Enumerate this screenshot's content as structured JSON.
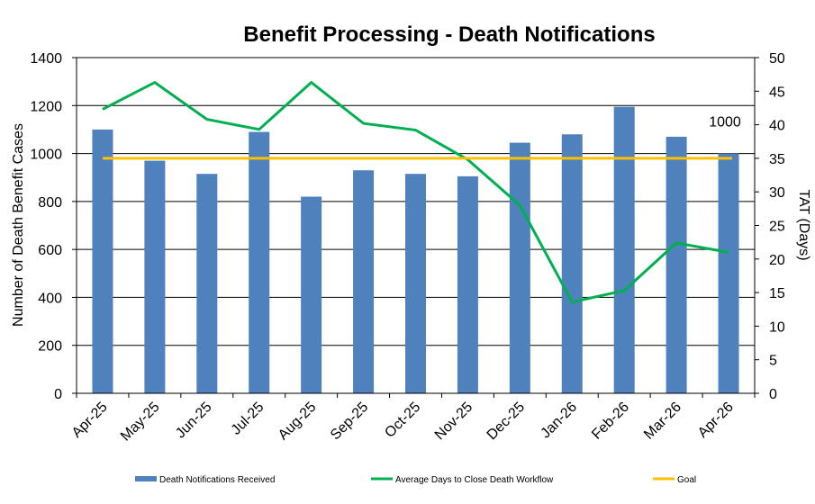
{
  "chart_data": {
    "type": "bar",
    "title": "Benefit Processing - Death Notifications",
    "categories": [
      "Apr-25",
      "May-25",
      "Jun-25",
      "Jul-25",
      "Aug-25",
      "Sep-25",
      "Oct-25",
      "Nov-25",
      "Dec-25",
      "Jan-26",
      "Feb-26",
      "Mar-26",
      "Apr-26"
    ],
    "series": [
      {
        "name": "Death Notifications Received",
        "type": "bar",
        "axis": "left",
        "color": "#4F81BD",
        "values": [
          1100,
          970,
          915,
          1090,
          820,
          930,
          915,
          905,
          1045,
          1080,
          1195,
          1070,
          1000
        ]
      },
      {
        "name": "Average Days to Close Death Workflow",
        "type": "line",
        "axis": "right",
        "color": "#00B050",
        "values": [
          42.3,
          46.3,
          40.8,
          39.3,
          46.3,
          40.2,
          39.2,
          34.8,
          28.0,
          13.6,
          15.3,
          22.4,
          21.0
        ]
      },
      {
        "name": "Goal",
        "type": "line",
        "axis": "right",
        "color": "#FFC000",
        "values": [
          35,
          35,
          35,
          35,
          35,
          35,
          35,
          35,
          35,
          35,
          35,
          35,
          35
        ]
      }
    ],
    "ylabel": "Number of Death Benefit Cases",
    "y2label": "TAT (Days)",
    "ylim": [
      0,
      1400
    ],
    "yticks": [
      0,
      200,
      400,
      600,
      800,
      1000,
      1200,
      1400
    ],
    "y2lim": [
      0,
      50
    ],
    "y2ticks": [
      0,
      5,
      10,
      15,
      20,
      25,
      30,
      35,
      40,
      45,
      50
    ],
    "annotation": {
      "text": "1000",
      "series": 0,
      "index": 12
    },
    "grid": "horizontal",
    "legend": "bottom"
  }
}
